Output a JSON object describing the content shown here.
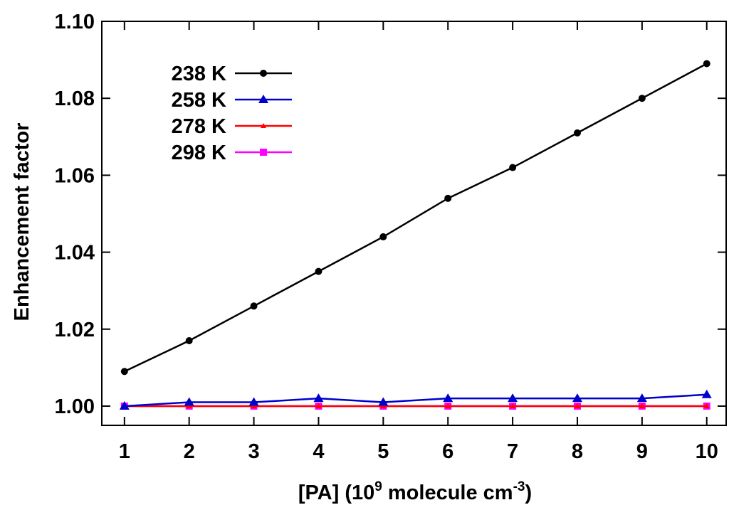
{
  "chart_data": {
    "type": "line",
    "title": "",
    "xlabel": "[PA] (10",
    "xlabel_exponent": "9",
    "xlabel_rest": " molecule cm",
    "xlabel_unit_exponent": "-3",
    "xlabel_close": ")",
    "ylabel": "Enhancement factor",
    "xlim": [
      0.65,
      10.3
    ],
    "ylim": [
      0.995,
      1.1
    ],
    "x": [
      1,
      2,
      3,
      4,
      5,
      6,
      7,
      8,
      9,
      10
    ],
    "xticks": [
      "1",
      "2",
      "3",
      "4",
      "5",
      "6",
      "7",
      "8",
      "9",
      "10"
    ],
    "yticks": [
      1.0,
      1.02,
      1.04,
      1.06,
      1.08,
      1.1
    ],
    "ytick_labels": [
      "1.00",
      "1.02",
      "1.04",
      "1.06",
      "1.08",
      "1.10"
    ],
    "grid": false,
    "legend_position": "top-left",
    "series": [
      {
        "name": "238 K",
        "color": "#000000",
        "marker": "circle",
        "values": [
          1.009,
          1.017,
          1.026,
          1.035,
          1.044,
          1.054,
          1.062,
          1.071,
          1.08,
          1.089
        ]
      },
      {
        "name": "258 K",
        "color": "#0000cc",
        "marker": "triangle",
        "values": [
          1.0,
          1.001,
          1.001,
          1.002,
          1.001,
          1.002,
          1.002,
          1.002,
          1.002,
          1.003
        ]
      },
      {
        "name": "278 K",
        "color": "#ff0000",
        "marker": "small-triangle",
        "values": [
          1.0,
          1.0,
          1.0,
          1.0,
          1.0,
          1.0,
          1.0,
          1.0,
          1.0,
          1.0
        ]
      },
      {
        "name": "298 K",
        "color": "#ff00ff",
        "marker": "square",
        "values": [
          1.0,
          1.0,
          1.0,
          1.0,
          1.0,
          1.0,
          1.0,
          1.0,
          1.0,
          1.0
        ]
      }
    ]
  }
}
